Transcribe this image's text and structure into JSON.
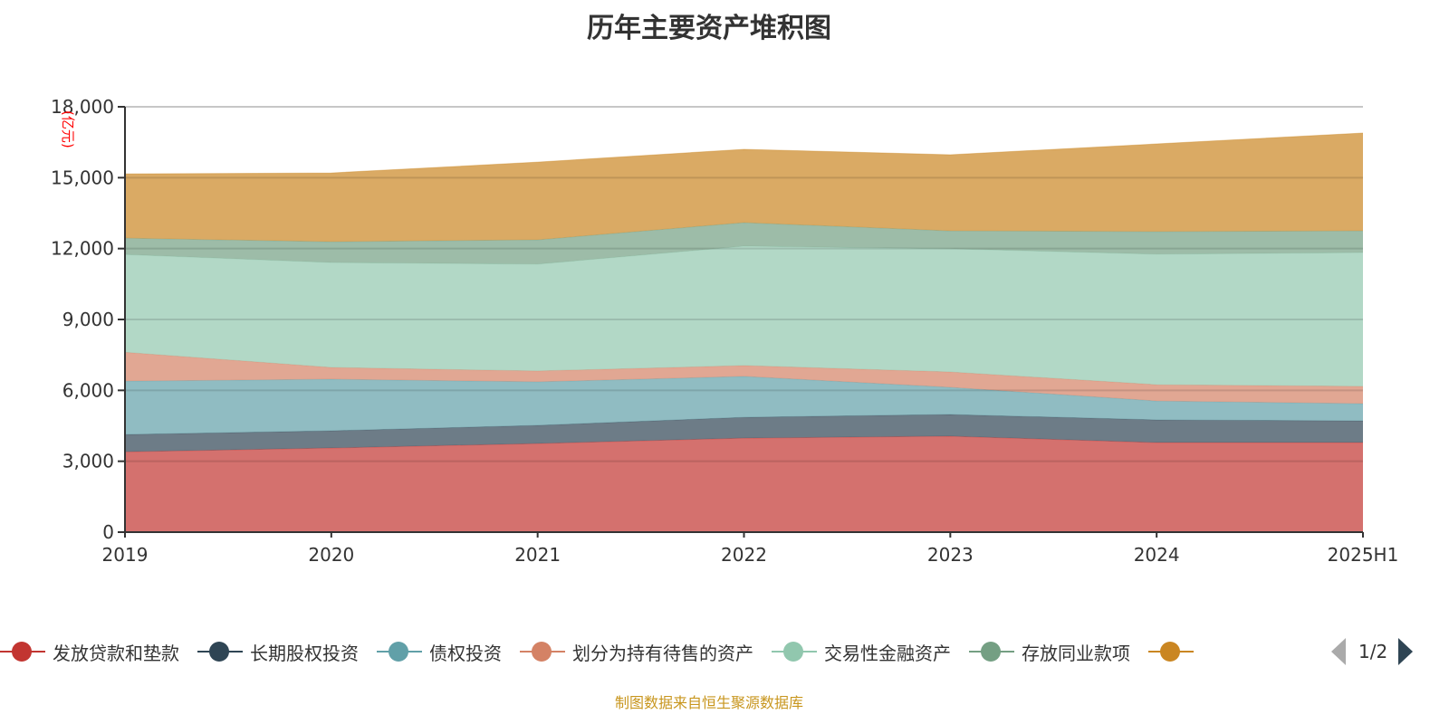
{
  "chart_data": {
    "type": "area",
    "stacked": true,
    "title": "历年主要资产堆积图",
    "ylabel": "(亿元)",
    "xlabel": "",
    "ylim": [
      0,
      18000
    ],
    "yticks": [
      0,
      3000,
      6000,
      9000,
      12000,
      15000,
      18000
    ],
    "ytick_labels": [
      "0",
      "3,000",
      "6,000",
      "9,000",
      "12,000",
      "15,000",
      "18,000"
    ],
    "categories": [
      "2019",
      "2020",
      "2021",
      "2022",
      "2023",
      "2024",
      "2025H1"
    ],
    "grid": true,
    "legend_position": "bottom",
    "series": [
      {
        "name": "发放贷款和垫款",
        "color": "#c23531",
        "values": [
          3400,
          3560,
          3750,
          3980,
          4060,
          3790,
          3790
        ]
      },
      {
        "name": "长期股权投资",
        "color": "#2f4554",
        "values": [
          730,
          730,
          770,
          880,
          920,
          960,
          920
        ]
      },
      {
        "name": "债权投资",
        "color": "#61a0a8",
        "values": [
          2260,
          2180,
          1840,
          1730,
          1150,
          800,
          730
        ]
      },
      {
        "name": "划分为持有待售的资产",
        "color": "#d48265",
        "values": [
          1220,
          500,
          460,
          460,
          650,
          690,
          730
        ]
      },
      {
        "name": "交易性金融资产",
        "color": "#91c7ae",
        "values": [
          4140,
          4440,
          4520,
          5050,
          5210,
          5520,
          5660
        ]
      },
      {
        "name": "存放同业款项",
        "color": "#749f83",
        "values": [
          690,
          880,
          1030,
          1000,
          760,
          960,
          920
        ]
      },
      {
        "name": "",
        "color": "#ca8622",
        "values": [
          2720,
          2910,
          3290,
          3100,
          3220,
          3710,
          4140
        ]
      }
    ]
  },
  "legend": {
    "page": "1/2"
  },
  "source": "制图数据来自恒生聚源数据库"
}
